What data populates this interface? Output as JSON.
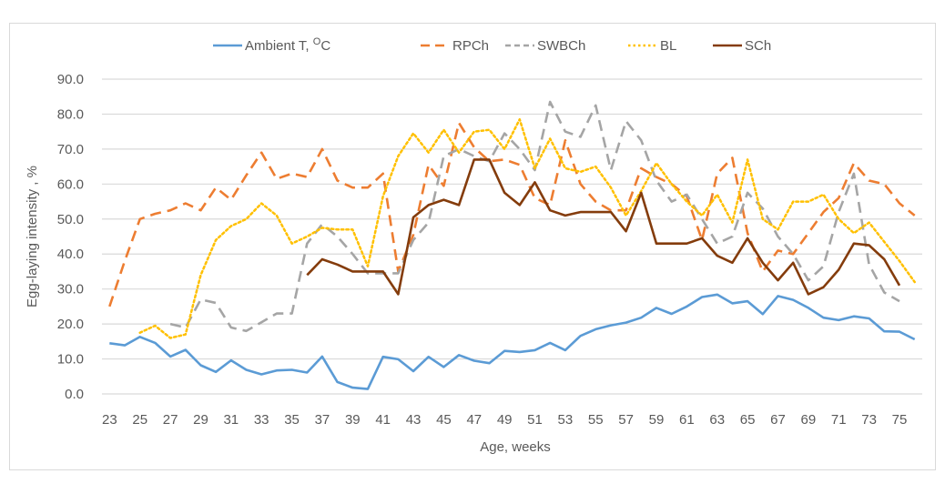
{
  "chart_data": {
    "type": "line",
    "title": "",
    "xlabel": "Age, weeks",
    "ylabel": "Egg-laying intensity , %",
    "ylim": [
      0,
      90
    ],
    "yticks": [
      "0.0",
      "10.0",
      "20.0",
      "30.0",
      "40.0",
      "50.0",
      "60.0",
      "70.0",
      "80.0",
      "90.0"
    ],
    "ytick_values": [
      0,
      10,
      20,
      30,
      40,
      50,
      60,
      70,
      80,
      90
    ],
    "x": [
      23,
      24,
      25,
      26,
      27,
      28,
      29,
      30,
      31,
      32,
      33,
      34,
      35,
      36,
      37,
      38,
      39,
      40,
      41,
      42,
      43,
      44,
      45,
      46,
      47,
      48,
      49,
      50,
      51,
      52,
      53,
      54,
      55,
      56,
      57,
      58,
      59,
      60,
      61,
      62,
      63,
      64,
      65,
      66,
      67,
      68,
      69,
      70,
      71,
      72,
      73,
      74,
      75,
      76
    ],
    "xtick_labels": [
      "23",
      "25",
      "27",
      "29",
      "31",
      "33",
      "35",
      "37",
      "39",
      "41",
      "43",
      "45",
      "47",
      "49",
      "51",
      "53",
      "55",
      "57",
      "59",
      "61",
      "63",
      "65",
      "67",
      "69",
      "71",
      "73",
      "75"
    ],
    "grid": true,
    "legend_position": "top",
    "series": [
      {
        "name": "Ambient T, °C",
        "legend_main": "Ambient T, ",
        "legend_sup": "O",
        "legend_suffix": "C",
        "color": "#5b9bd5",
        "style": "solid",
        "values": [
          14.5,
          13.9,
          16.3,
          14.6,
          10.7,
          12.6,
          8.2,
          6.3,
          9.6,
          6.9,
          5.6,
          6.7,
          6.9,
          6.1,
          10.7,
          3.4,
          1.8,
          1.4,
          10.6,
          9.9,
          6.5,
          10.6,
          7.7,
          11.1,
          9.5,
          8.8,
          12.3,
          12.0,
          12.5,
          14.6,
          12.5,
          16.6,
          18.5,
          19.6,
          20.4,
          21.8,
          24.6,
          22.9,
          25.0,
          27.7,
          28.4,
          25.9,
          26.5,
          22.8,
          28.0,
          26.9,
          24.6,
          21.8,
          21.1,
          22.2,
          21.6,
          17.9,
          17.8,
          15.6
        ]
      },
      {
        "name": "RPCh",
        "color": "#ed7d31",
        "style": "dash",
        "values": [
          25.0,
          38.0,
          50.0,
          51.5,
          52.5,
          54.5,
          52.5,
          59.0,
          55.5,
          62.5,
          69.0,
          61.5,
          63.0,
          62.0,
          70.0,
          61.0,
          59.0,
          59.0,
          63.0,
          35.0,
          45.5,
          65.5,
          59.5,
          77.5,
          70.5,
          66.5,
          67.0,
          65.5,
          56.0,
          54.0,
          72.5,
          60.0,
          55.0,
          52.5,
          52.5,
          64.5,
          62.0,
          60.0,
          56.5,
          44.0,
          63.0,
          67.5,
          46.0,
          35.0,
          41.0,
          40.0,
          46.0,
          52.0,
          56.0,
          66.0,
          61.0,
          60.0,
          54.5,
          51.0
        ]
      },
      {
        "name": "SWBCh",
        "color": "#a5a5a5",
        "style": "dash",
        "values": [
          null,
          null,
          null,
          null,
          20.0,
          19.0,
          27.0,
          26.0,
          19.0,
          18.0,
          20.5,
          23.0,
          23.0,
          43.0,
          48.5,
          45.0,
          40.0,
          34.5,
          34.5,
          34.5,
          44.0,
          49.0,
          68.0,
          70.0,
          68.0,
          66.5,
          74.5,
          70.0,
          64.0,
          83.5,
          75.0,
          73.5,
          82.5,
          64.0,
          78.0,
          72.5,
          61.0,
          55.0,
          57.0,
          50.0,
          43.0,
          45.0,
          57.5,
          53.0,
          45.0,
          40.0,
          32.5,
          36.5,
          52.0,
          63.0,
          37.0,
          29.0,
          26.5,
          null
        ]
      },
      {
        "name": "BL",
        "color": "#ffc000",
        "style": "dot",
        "values": [
          null,
          null,
          17.5,
          19.5,
          16.0,
          17.0,
          34.0,
          44.0,
          48.0,
          50.0,
          54.5,
          51.0,
          43.0,
          45.0,
          47.5,
          47.0,
          47.0,
          36.5,
          56.5,
          68.0,
          74.5,
          69.0,
          75.5,
          69.0,
          75.0,
          75.5,
          70.0,
          78.5,
          64.5,
          73.0,
          64.5,
          63.5,
          65.0,
          59.0,
          51.0,
          58.0,
          66.0,
          60.0,
          55.0,
          51.0,
          57.0,
          49.0,
          67.0,
          50.0,
          47.0,
          55.0,
          55.0,
          57.0,
          50.0,
          46.0,
          49.0,
          43.5,
          38.0,
          32.0
        ]
      },
      {
        "name": "SCh",
        "color": "#843c0c",
        "style": "solid",
        "values": [
          null,
          null,
          null,
          null,
          null,
          null,
          null,
          null,
          null,
          null,
          null,
          null,
          null,
          34.0,
          38.5,
          37.0,
          35.0,
          35.0,
          35.0,
          28.5,
          50.5,
          54.0,
          55.5,
          54.0,
          67.0,
          67.0,
          57.5,
          54.0,
          60.5,
          52.5,
          51.0,
          52.0,
          52.0,
          52.0,
          46.5,
          57.5,
          43.0,
          43.0,
          43.0,
          44.5,
          39.5,
          37.5,
          44.5,
          37.5,
          32.5,
          37.5,
          28.5,
          30.5,
          35.5,
          43.0,
          42.5,
          38.5,
          31.0,
          null
        ]
      }
    ]
  }
}
